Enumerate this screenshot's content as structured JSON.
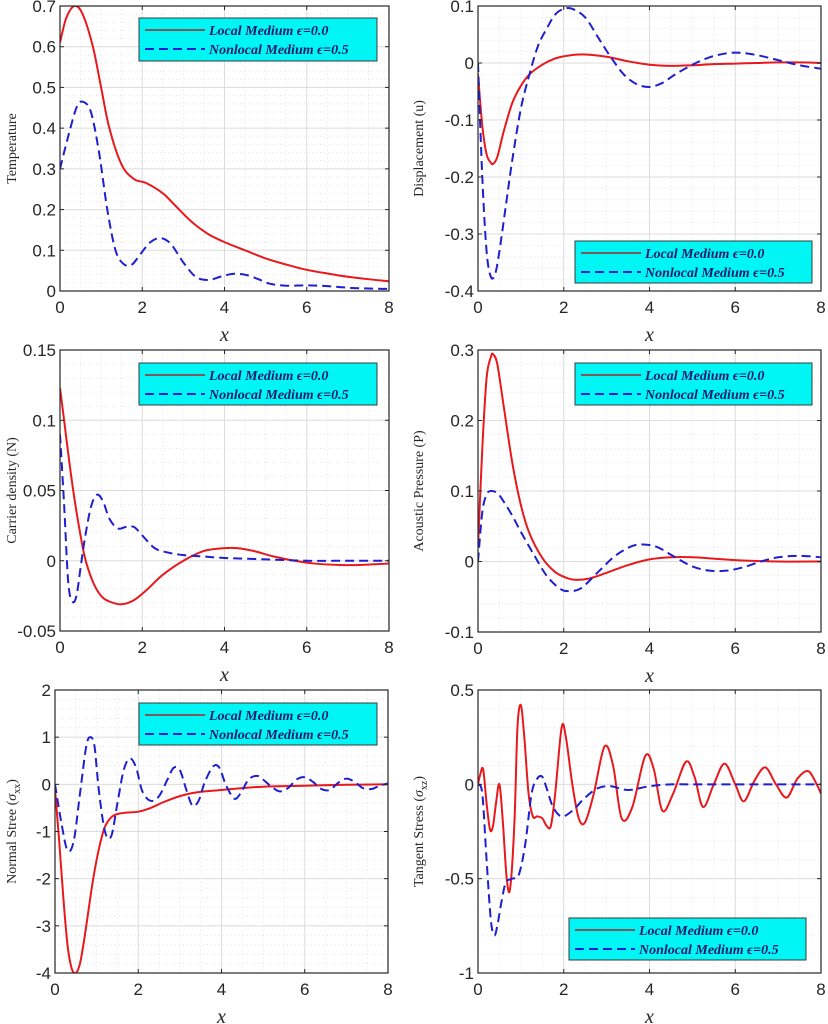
{
  "colors": {
    "local": "#e8191c",
    "nonlocal": "#1f1fd0",
    "legend_bg": "#00f5f5",
    "legend_local_sample": "#7a5a5a",
    "frame": "#262626",
    "grid_major": "#dcdcdc",
    "grid_minor": "#e4e4e4"
  },
  "chart_data": [
    {
      "id": "temperature",
      "type": "line",
      "title": "",
      "xlabel": "x",
      "ylabel": "Temperature",
      "xlim": [
        0,
        8
      ],
      "ylim": [
        0,
        0.7
      ],
      "xticks": [
        0,
        2,
        4,
        6,
        8
      ],
      "xtick_labels": [
        "0",
        "2",
        "4",
        "6",
        "8"
      ],
      "yticks": [
        0,
        0.1,
        0.2,
        0.3,
        0.4,
        0.5,
        0.6,
        0.7
      ],
      "ytick_labels": [
        "0",
        "0.1",
        "0.2",
        "0.3",
        "0.4",
        "0.5",
        "0.6",
        "0.7"
      ],
      "grid": true,
      "legend_position": "top-right",
      "series": [
        {
          "name": "Local Medium ϵ=0.0",
          "style": "solid",
          "x": [
            0,
            0.15,
            0.35,
            0.55,
            0.8,
            1.0,
            1.2,
            1.5,
            1.8,
            2.1,
            2.5,
            2.8,
            3.2,
            3.6,
            4.0,
            4.5,
            5.0,
            5.5,
            6.0,
            6.5,
            7.0,
            7.5,
            8.0
          ],
          "y": [
            0.61,
            0.67,
            0.7,
            0.68,
            0.6,
            0.5,
            0.4,
            0.31,
            0.275,
            0.265,
            0.24,
            0.21,
            0.17,
            0.14,
            0.12,
            0.1,
            0.08,
            0.065,
            0.052,
            0.043,
            0.035,
            0.029,
            0.024
          ]
        },
        {
          "name": "Nonlocal Medium ϵ=0.5",
          "style": "dashed",
          "x": [
            0,
            0.2,
            0.4,
            0.55,
            0.75,
            0.95,
            1.15,
            1.35,
            1.55,
            1.75,
            1.95,
            2.2,
            2.45,
            2.7,
            3.0,
            3.3,
            3.6,
            3.9,
            4.2,
            4.5,
            4.8,
            5.1,
            5.5,
            6.0,
            6.5,
            7.0,
            7.5,
            8.0
          ],
          "y": [
            0.3,
            0.38,
            0.45,
            0.465,
            0.44,
            0.34,
            0.2,
            0.1,
            0.066,
            0.065,
            0.09,
            0.12,
            0.13,
            0.115,
            0.07,
            0.035,
            0.027,
            0.035,
            0.042,
            0.04,
            0.03,
            0.018,
            0.013,
            0.014,
            0.012,
            0.008,
            0.006,
            0.005
          ]
        }
      ]
    },
    {
      "id": "displacement",
      "type": "line",
      "title": "",
      "xlabel": "x",
      "ylabel": "Displacement (u)",
      "xlim": [
        0,
        8
      ],
      "ylim": [
        -0.4,
        0.1
      ],
      "xticks": [
        0,
        2,
        4,
        6,
        8
      ],
      "xtick_labels": [
        "0",
        "2",
        "4",
        "6",
        "8"
      ],
      "yticks": [
        -0.4,
        -0.3,
        -0.2,
        -0.1,
        0,
        0.1
      ],
      "ytick_labels": [
        "-0.4",
        "-0.3",
        "-0.2",
        "-0.1",
        "0",
        "0.1"
      ],
      "grid": true,
      "legend_position": "bottom-right",
      "series": [
        {
          "name": "Local Medium ϵ=0.0",
          "style": "solid",
          "x": [
            0,
            0.1,
            0.2,
            0.3,
            0.35,
            0.45,
            0.6,
            0.8,
            1.0,
            1.2,
            1.5,
            1.8,
            2.1,
            2.5,
            3.0,
            3.5,
            4.0,
            4.5,
            5.0,
            5.5,
            6.0,
            6.5,
            7.0,
            7.5,
            8.0
          ],
          "y": [
            -0.02,
            -0.11,
            -0.16,
            -0.175,
            -0.177,
            -0.165,
            -0.12,
            -0.07,
            -0.04,
            -0.02,
            -0.003,
            0.008,
            0.013,
            0.015,
            0.011,
            0.003,
            -0.003,
            -0.005,
            -0.004,
            -0.002,
            -0.001,
            0.0,
            0.001,
            0.001,
            0.0
          ]
        },
        {
          "name": "Nonlocal Medium ϵ=0.5",
          "style": "dashed",
          "x": [
            0,
            0.1,
            0.2,
            0.3,
            0.4,
            0.5,
            0.65,
            0.8,
            1.0,
            1.2,
            1.4,
            1.6,
            1.8,
            2.0,
            2.2,
            2.5,
            2.8,
            3.1,
            3.4,
            3.7,
            4.0,
            4.3,
            4.6,
            5.0,
            5.4,
            5.8,
            6.1,
            6.5,
            7.0,
            7.5,
            8.0
          ],
          "y": [
            0.0,
            -0.2,
            -0.33,
            -0.375,
            -0.37,
            -0.33,
            -0.25,
            -0.17,
            -0.08,
            -0.02,
            0.03,
            0.06,
            0.085,
            0.095,
            0.095,
            0.08,
            0.045,
            0.01,
            -0.02,
            -0.037,
            -0.042,
            -0.035,
            -0.02,
            -0.003,
            0.01,
            0.017,
            0.018,
            0.014,
            0.005,
            -0.004,
            -0.01
          ]
        }
      ]
    },
    {
      "id": "carrier_density",
      "type": "line",
      "title": "",
      "xlabel": "x",
      "ylabel": "Carrier density (N)",
      "xlim": [
        0,
        8
      ],
      "ylim": [
        -0.05,
        0.15
      ],
      "xticks": [
        0,
        2,
        4,
        6,
        8
      ],
      "xtick_labels": [
        "0",
        "2",
        "4",
        "6",
        "8"
      ],
      "yticks": [
        -0.05,
        0,
        0.05,
        0.1,
        0.15
      ],
      "ytick_labels": [
        "-0.05",
        "0",
        "0.05",
        "0.1",
        "0.15"
      ],
      "grid": true,
      "legend_position": "top-right",
      "series": [
        {
          "name": "Local Medium ϵ=0.0",
          "style": "solid",
          "x": [
            0,
            0.1,
            0.25,
            0.4,
            0.6,
            0.8,
            1.0,
            1.2,
            1.5,
            1.8,
            2.1,
            2.5,
            3.0,
            3.5,
            4.0,
            4.3,
            4.7,
            5.2,
            5.7,
            6.2,
            6.8,
            7.3,
            8.0
          ],
          "y": [
            0.123,
            0.1,
            0.065,
            0.035,
            0.003,
            -0.015,
            -0.025,
            -0.029,
            -0.031,
            -0.028,
            -0.021,
            -0.01,
            0.0,
            0.007,
            0.009,
            0.009,
            0.007,
            0.003,
            0.0,
            -0.002,
            -0.003,
            -0.003,
            -0.002
          ]
        },
        {
          "name": "Nonlocal Medium ϵ=0.5",
          "style": "dashed",
          "x": [
            0,
            0.1,
            0.2,
            0.3,
            0.4,
            0.5,
            0.6,
            0.75,
            0.9,
            1.05,
            1.2,
            1.4,
            1.6,
            1.8,
            2.0,
            2.3,
            2.6,
            3.0,
            3.5,
            4.0,
            5.0,
            6.0,
            7.0,
            8.0
          ],
          "y": [
            0.09,
            0.04,
            -0.015,
            -0.029,
            -0.025,
            -0.005,
            0.015,
            0.038,
            0.047,
            0.042,
            0.03,
            0.023,
            0.024,
            0.024,
            0.018,
            0.009,
            0.006,
            0.004,
            0.003,
            0.002,
            0.001,
            0.0,
            0.0,
            0.0
          ]
        }
      ]
    },
    {
      "id": "acoustic_pressure",
      "type": "line",
      "title": "",
      "xlabel": "x",
      "ylabel": "Acoustic Pressure (P)",
      "xlim": [
        0,
        8
      ],
      "ylim": [
        -0.1,
        0.3
      ],
      "xticks": [
        0,
        2,
        4,
        6,
        8
      ],
      "xtick_labels": [
        "0",
        "2",
        "4",
        "6",
        "8"
      ],
      "yticks": [
        -0.1,
        0,
        0.1,
        0.2,
        0.3
      ],
      "ytick_labels": [
        "-0.1",
        "0",
        "0.1",
        "0.2",
        "0.3"
      ],
      "grid": true,
      "legend_position": "top-right",
      "series": [
        {
          "name": "Local Medium ϵ=0.0",
          "style": "solid",
          "x": [
            0,
            0.1,
            0.2,
            0.3,
            0.35,
            0.45,
            0.6,
            0.8,
            1.0,
            1.2,
            1.5,
            1.8,
            2.1,
            2.3,
            2.6,
            3.0,
            3.5,
            4.0,
            4.5,
            5.0,
            5.5,
            6.0,
            7.0,
            8.0
          ],
          "y": [
            0.02,
            0.16,
            0.26,
            0.29,
            0.294,
            0.28,
            0.22,
            0.14,
            0.08,
            0.04,
            0.005,
            -0.015,
            -0.024,
            -0.026,
            -0.024,
            -0.016,
            -0.005,
            0.003,
            0.006,
            0.006,
            0.004,
            0.002,
            0.0,
            0.0
          ]
        },
        {
          "name": "Nonlocal Medium ϵ=0.5",
          "style": "dashed",
          "x": [
            0,
            0.1,
            0.2,
            0.3,
            0.45,
            0.6,
            0.8,
            1.0,
            1.3,
            1.6,
            1.9,
            2.1,
            2.4,
            2.8,
            3.2,
            3.6,
            3.9,
            4.2,
            4.6,
            5.0,
            5.4,
            5.8,
            6.2,
            6.6,
            7.0,
            7.5,
            8.0
          ],
          "y": [
            0.0,
            0.07,
            0.095,
            0.1,
            0.097,
            0.085,
            0.065,
            0.042,
            0.01,
            -0.02,
            -0.038,
            -0.042,
            -0.038,
            -0.015,
            0.008,
            0.022,
            0.024,
            0.02,
            0.006,
            -0.007,
            -0.013,
            -0.013,
            -0.008,
            0.0,
            0.006,
            0.008,
            0.006
          ]
        }
      ]
    },
    {
      "id": "normal_stress",
      "type": "line",
      "title": "",
      "xlabel": "x",
      "ylabel": "Normal Stree (σxx)",
      "ylabel_main": "Normal Stree (",
      "ylabel_symbol": "σ",
      "ylabel_subscript": "xx",
      "ylabel_close": ")",
      "xlim": [
        0,
        8
      ],
      "ylim": [
        -4,
        2
      ],
      "xticks": [
        0,
        2,
        4,
        6,
        8
      ],
      "xtick_labels": [
        "0",
        "2",
        "4",
        "6",
        "8"
      ],
      "yticks": [
        -4,
        -3,
        -2,
        -1,
        0,
        1,
        2
      ],
      "ytick_labels": [
        "-4",
        "-3",
        "-2",
        "-1",
        "0",
        "1",
        "2"
      ],
      "grid": true,
      "legend_position": "top-right",
      "series": [
        {
          "name": "Local Medium ϵ=0.0",
          "style": "solid",
          "x": [
            0,
            0.1,
            0.2,
            0.3,
            0.4,
            0.5,
            0.6,
            0.7,
            0.8,
            0.9,
            1.0,
            1.1,
            1.2,
            1.35,
            1.5,
            1.7,
            2.0,
            2.3,
            2.6,
            3.0,
            3.4,
            4.0,
            4.5,
            5.0,
            6.0,
            7.0,
            8.0
          ],
          "y": [
            -0.1,
            -1.2,
            -2.4,
            -3.4,
            -3.9,
            -4.0,
            -3.8,
            -3.3,
            -2.7,
            -2.1,
            -1.6,
            -1.2,
            -0.9,
            -0.7,
            -0.63,
            -0.6,
            -0.58,
            -0.5,
            -0.38,
            -0.25,
            -0.17,
            -0.12,
            -0.08,
            -0.05,
            -0.03,
            -0.01,
            0.0
          ]
        },
        {
          "name": "Nonlocal Medium ϵ=0.5",
          "style": "dashed",
          "x": [
            0,
            0.15,
            0.3,
            0.45,
            0.6,
            0.75,
            0.85,
            0.95,
            1.05,
            1.2,
            1.35,
            1.5,
            1.65,
            1.8,
            1.95,
            2.1,
            2.3,
            2.5,
            2.7,
            2.85,
            3.0,
            3.15,
            3.3,
            3.45,
            3.6,
            3.8,
            3.95,
            4.1,
            4.3,
            4.45,
            4.65,
            4.85,
            5.0,
            5.2,
            5.4,
            5.6,
            5.8,
            6.0,
            6.2,
            6.4,
            6.6,
            6.8,
            7.0,
            7.2,
            7.4,
            7.6,
            7.8,
            8.0
          ],
          "y": [
            0.0,
            -0.8,
            -1.4,
            -1.2,
            -0.2,
            0.8,
            1.0,
            0.8,
            -0.1,
            -1.0,
            -1.1,
            -0.4,
            0.3,
            0.55,
            0.35,
            -0.15,
            -0.35,
            -0.25,
            0.1,
            0.35,
            0.3,
            -0.1,
            -0.45,
            -0.35,
            0.05,
            0.38,
            0.35,
            0.0,
            -0.3,
            -0.2,
            0.1,
            0.18,
            0.1,
            -0.05,
            -0.15,
            -0.08,
            0.1,
            0.15,
            0.05,
            -0.1,
            -0.12,
            0.03,
            0.12,
            0.05,
            -0.08,
            -0.1,
            -0.03,
            0.02
          ]
        }
      ]
    },
    {
      "id": "tangent_stress",
      "type": "line",
      "title": "",
      "xlabel": "x",
      "ylabel": "Tangent Stress (σxz)",
      "ylabel_main": "Tangent Stress (",
      "ylabel_symbol": "σ",
      "ylabel_subscript": "xz",
      "ylabel_close": ")",
      "xlim": [
        0,
        8
      ],
      "ylim": [
        -1,
        0.5
      ],
      "xticks": [
        0,
        2,
        4,
        6,
        8
      ],
      "xtick_labels": [
        "0",
        "2",
        "4",
        "6",
        "8"
      ],
      "yticks": [
        -1,
        -0.5,
        0,
        0.5
      ],
      "ytick_labels": [
        "-1",
        "-0.5",
        "0",
        "0.5"
      ],
      "grid": true,
      "legend_position": "bottom-right",
      "series": [
        {
          "name": "Local Medium ϵ=0.0",
          "style": "solid",
          "x": [
            0,
            0.05,
            0.12,
            0.2,
            0.28,
            0.35,
            0.42,
            0.5,
            0.58,
            0.67,
            0.75,
            0.85,
            0.92,
            1.0,
            1.08,
            1.18,
            1.28,
            1.38,
            1.5,
            1.6,
            1.7,
            1.8,
            1.95,
            2.05,
            2.2,
            2.35,
            2.5,
            2.7,
            2.95,
            3.15,
            3.35,
            3.6,
            3.9,
            4.1,
            4.3,
            4.55,
            4.85,
            5.05,
            5.25,
            5.5,
            5.75,
            6.0,
            6.2,
            6.45,
            6.7,
            6.95,
            7.2,
            7.45,
            7.7,
            7.9,
            8.0
          ],
          "y": [
            0.0,
            0.05,
            0.08,
            -0.1,
            -0.24,
            -0.22,
            -0.1,
            0.0,
            -0.2,
            -0.5,
            -0.55,
            -0.2,
            0.3,
            0.42,
            0.25,
            -0.05,
            -0.17,
            -0.17,
            -0.18,
            -0.22,
            -0.22,
            -0.05,
            0.3,
            0.25,
            0.0,
            -0.18,
            -0.2,
            -0.05,
            0.2,
            0.1,
            -0.18,
            -0.12,
            0.15,
            0.08,
            -0.14,
            -0.05,
            0.12,
            0.04,
            -0.12,
            0.0,
            0.11,
            0.0,
            -0.09,
            0.02,
            0.09,
            0.0,
            -0.07,
            0.03,
            0.07,
            0.0,
            -0.05
          ]
        },
        {
          "name": "Nonlocal Medium ϵ=0.5",
          "style": "dashed",
          "x": [
            0,
            0.1,
            0.2,
            0.3,
            0.38,
            0.45,
            0.55,
            0.65,
            0.8,
            0.95,
            1.1,
            1.25,
            1.38,
            1.5,
            1.6,
            1.75,
            1.95,
            2.2,
            2.5,
            2.8,
            3.1,
            3.5,
            4.0,
            4.5,
            5.0,
            6.0,
            7.0,
            8.0
          ],
          "y": [
            0.0,
            -0.05,
            -0.4,
            -0.72,
            -0.8,
            -0.75,
            -0.62,
            -0.52,
            -0.5,
            -0.48,
            -0.32,
            -0.05,
            0.03,
            0.04,
            -0.02,
            -0.12,
            -0.17,
            -0.14,
            -0.07,
            -0.02,
            -0.01,
            -0.03,
            -0.01,
            0.0,
            0.0,
            0.0,
            0.0,
            0.0
          ]
        }
      ]
    }
  ]
}
